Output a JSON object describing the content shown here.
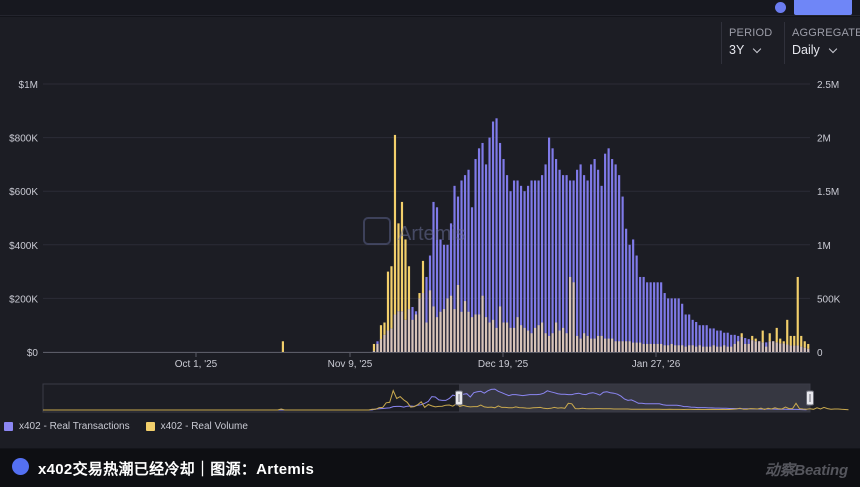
{
  "header": {
    "period_label": "PERIOD",
    "period_value": "3Y",
    "aggregate_label": "AGGREGATE",
    "aggregate_value": "Daily"
  },
  "watermark": "Artemis",
  "legend": [
    {
      "label": "x402 - Real Transactions",
      "color": "#8b86f2"
    },
    {
      "label": "x402 - Real Volume",
      "color": "#f2cf6b"
    }
  ],
  "footer": {
    "caption": "x402交易热潮已经冷却｜图源：Artemis",
    "brand": "动察Beating"
  },
  "colors": {
    "transactions": "#7f7ae8",
    "volume": "#f2cf6b",
    "overlap": "#d8c4b8"
  },
  "chart_data": {
    "type": "bar",
    "grid": true,
    "legend_placement": "bottom-left",
    "x_ticks": [
      "Oct 1, '25",
      "Nov 9, '25",
      "Dec 19, '25",
      "Jan 27, '26"
    ],
    "y_left": {
      "ticks": [
        "$0",
        "$200K",
        "$400K",
        "$600K",
        "$800K",
        "$1M"
      ],
      "range": [
        0,
        1000000
      ]
    },
    "y_right": {
      "ticks": [
        "0",
        "500K",
        "1M",
        "1.5M",
        "2M",
        "2.5M"
      ],
      "range": [
        0,
        2500000
      ]
    },
    "series": [
      {
        "name": "x402 - Real Transactions",
        "axis": "right",
        "color": "#7f7ae8",
        "values": [
          0,
          0,
          0,
          0,
          0,
          0,
          0,
          0,
          0,
          0,
          0,
          0,
          0,
          0,
          0,
          0,
          0,
          0,
          0,
          0,
          0,
          0,
          0,
          0,
          0,
          0,
          0,
          0,
          0,
          0,
          0,
          0,
          0,
          0,
          0,
          0,
          0,
          0,
          0,
          0,
          0,
          0,
          0,
          0,
          0,
          0,
          0,
          0,
          0,
          0,
          0,
          0,
          0,
          0,
          0,
          0,
          0,
          0,
          0,
          0,
          0,
          0,
          0,
          0,
          0,
          0,
          0,
          0,
          0,
          0,
          0,
          0,
          0,
          0,
          0,
          0,
          0,
          0,
          0,
          0,
          0,
          0,
          0,
          0,
          0,
          0,
          0,
          0,
          0,
          0,
          0,
          0,
          0,
          0,
          10000,
          100000,
          120000,
          160000,
          200000,
          220000,
          350000,
          380000,
          380000,
          300000,
          400000,
          420000,
          380000,
          500000,
          550000,
          700000,
          900000,
          1400000,
          1350000,
          1050000,
          1000000,
          1000000,
          1200000,
          1550000,
          1450000,
          1600000,
          1650000,
          1700000,
          1350000,
          1800000,
          1900000,
          1950000,
          1750000,
          2000000,
          2150000,
          2180000,
          1950000,
          1800000,
          1650000,
          1500000,
          1600000,
          1600000,
          1550000,
          1500000,
          1550000,
          1600000,
          1600000,
          1600000,
          1650000,
          1750000,
          2000000,
          1900000,
          1800000,
          1700000,
          1650000,
          1650000,
          1600000,
          1600000,
          1700000,
          1750000,
          1650000,
          1600000,
          1750000,
          1800000,
          1700000,
          1550000,
          1850000,
          1900000,
          1800000,
          1750000,
          1650000,
          1450000,
          1150000,
          1000000,
          1050000,
          900000,
          700000,
          700000,
          650000,
          650000,
          650000,
          650000,
          650000,
          550000,
          500000,
          500000,
          500000,
          500000,
          450000,
          350000,
          350000,
          300000,
          280000,
          250000,
          250000,
          250000,
          220000,
          220000,
          200000,
          200000,
          180000,
          180000,
          160000,
          160000,
          150000,
          140000,
          130000,
          120000,
          110000,
          100000,
          100000,
          90000,
          90000,
          100000,
          100000,
          90000,
          80000,
          80000,
          70000,
          60000,
          60000,
          60000,
          50000,
          40000,
          30000
        ]
      },
      {
        "name": "x402 - Real Volume",
        "axis": "left",
        "color": "#f2cf6b",
        "values": [
          0,
          0,
          0,
          0,
          0,
          0,
          0,
          0,
          0,
          0,
          0,
          0,
          0,
          0,
          0,
          0,
          0,
          0,
          0,
          0,
          0,
          0,
          0,
          0,
          0,
          0,
          0,
          0,
          0,
          0,
          0,
          0,
          0,
          0,
          0,
          0,
          0,
          0,
          0,
          0,
          0,
          0,
          0,
          0,
          0,
          0,
          0,
          0,
          0,
          0,
          0,
          0,
          0,
          0,
          0,
          0,
          0,
          0,
          0,
          0,
          0,
          0,
          0,
          0,
          0,
          0,
          0,
          0,
          40000,
          0,
          0,
          0,
          0,
          0,
          0,
          0,
          0,
          0,
          0,
          0,
          0,
          0,
          0,
          0,
          0,
          0,
          0,
          0,
          0,
          0,
          0,
          0,
          0,
          0,
          30000,
          30000,
          100000,
          110000,
          300000,
          320000,
          810000,
          480000,
          560000,
          420000,
          320000,
          120000,
          140000,
          220000,
          340000,
          110000,
          230000,
          170000,
          130000,
          150000,
          160000,
          200000,
          210000,
          160000,
          250000,
          150000,
          190000,
          150000,
          130000,
          140000,
          140000,
          210000,
          130000,
          110000,
          120000,
          90000,
          170000,
          110000,
          110000,
          90000,
          90000,
          130000,
          100000,
          90000,
          80000,
          70000,
          90000,
          100000,
          110000,
          70000,
          60000,
          70000,
          110000,
          80000,
          90000,
          70000,
          280000,
          260000,
          60000,
          50000,
          70000,
          60000,
          50000,
          50000,
          60000,
          60000,
          50000,
          50000,
          50000,
          40000,
          40000,
          40000,
          40000,
          40000,
          35000,
          35000,
          35000,
          30000,
          30000,
          30000,
          30000,
          30000,
          30000,
          25000,
          25000,
          30000,
          25000,
          25000,
          25000,
          20000,
          25000,
          25000,
          20000,
          25000,
          20000,
          20000,
          20000,
          25000,
          20000,
          20000,
          25000,
          20000,
          20000,
          30000,
          40000,
          70000,
          30000,
          30000,
          60000,
          50000,
          40000,
          80000,
          20000,
          70000,
          40000,
          90000,
          50000,
          40000,
          120000,
          60000,
          60000,
          280000,
          60000,
          40000,
          30000,
          50000,
          30000,
          90000,
          40000,
          110000,
          60000,
          30000,
          40000,
          40000,
          30000,
          20000,
          10000
        ]
      }
    ]
  }
}
